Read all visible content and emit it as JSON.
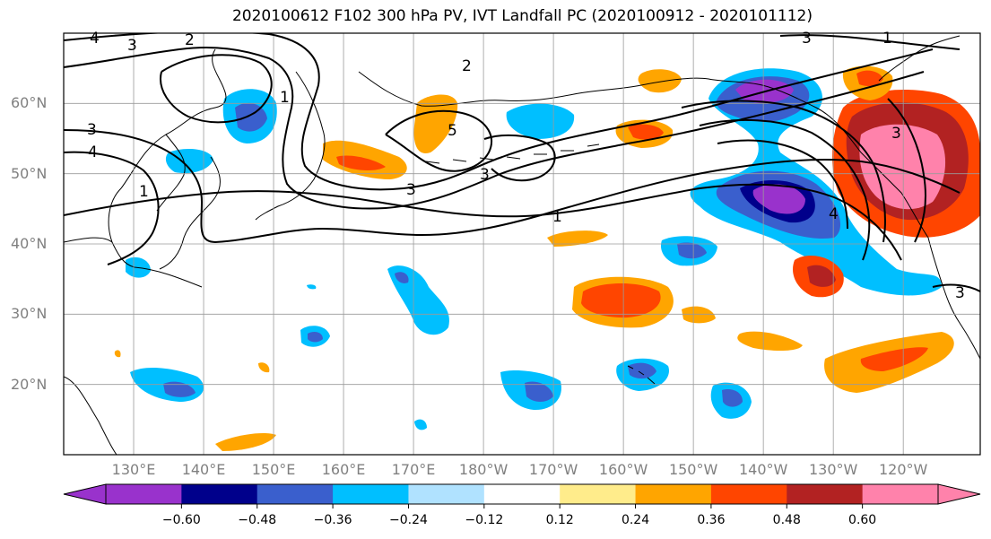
{
  "title": "2020100612 F102 300 hPa PV, IVT Landfall PC (2020100912 - 2020101112)",
  "map": {
    "lat_labels": [
      "60°N",
      "50°N",
      "40°N",
      "30°N",
      "20°N"
    ],
    "lat_values": [
      60,
      50,
      40,
      30,
      20
    ],
    "lon_labels": [
      "130°E",
      "140°E",
      "150°E",
      "160°E",
      "170°E",
      "180°W",
      "170°W",
      "160°W",
      "150°W",
      "140°W",
      "130°W",
      "120°W"
    ],
    "lon_values": [
      130,
      140,
      150,
      160,
      170,
      180,
      190,
      200,
      210,
      220,
      230,
      240
    ],
    "extent": {
      "lon_min": 120,
      "lon_max": 251,
      "lat_min": 10,
      "lat_max": 70
    },
    "gridlines": true
  },
  "pv_contours": {
    "labels": [
      "4",
      "3",
      "2",
      "3",
      "4",
      "1",
      "2",
      "3",
      "3",
      "3",
      "1",
      "1",
      "3",
      "4",
      "3",
      "1",
      "5"
    ],
    "color": "#000000"
  },
  "colorbar": {
    "colors": [
      "#9932cc",
      "#00008b",
      "#3a5fcd",
      "#00bfff",
      "#b0e2ff",
      "#ffffff",
      "#ffec8b",
      "#ffa500",
      "#ff4500",
      "#b22222",
      "#ff82ab"
    ],
    "tick_labels": [
      "−0.60",
      "−0.48",
      "−0.36",
      "−0.24",
      "−0.12",
      "0.12",
      "0.24",
      "0.36",
      "0.48",
      "0.60"
    ],
    "tick_values": [
      -0.6,
      -0.48,
      -0.36,
      -0.24,
      -0.12,
      0.12,
      0.24,
      0.36,
      0.48,
      0.6
    ],
    "extend": "both"
  }
}
